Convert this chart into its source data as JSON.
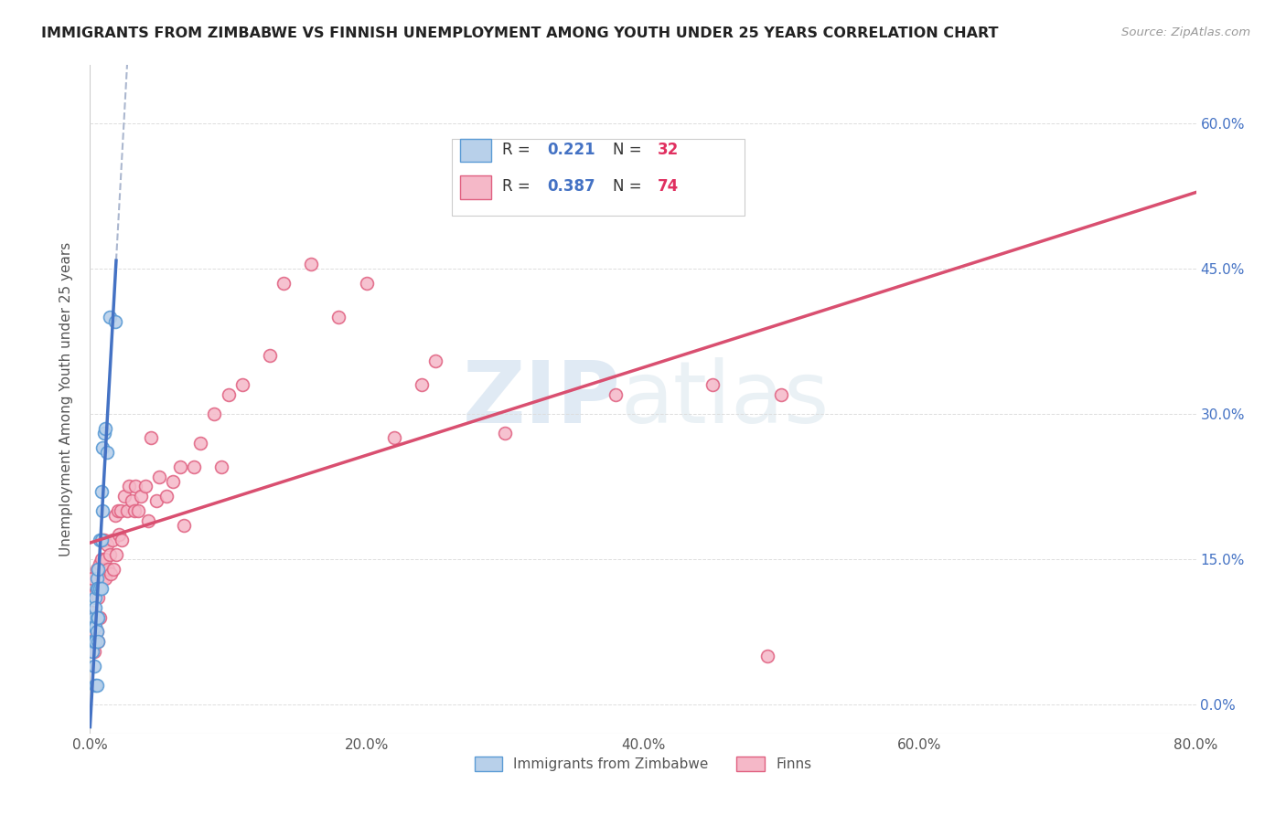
{
  "title": "IMMIGRANTS FROM ZIMBABWE VS FINNISH UNEMPLOYMENT AMONG YOUTH UNDER 25 YEARS CORRELATION CHART",
  "source": "Source: ZipAtlas.com",
  "ylabel": "Unemployment Among Youth under 25 years",
  "xlim": [
    0.0,
    0.8
  ],
  "ylim": [
    -0.03,
    0.66
  ],
  "xtick_vals": [
    0.0,
    0.2,
    0.4,
    0.6,
    0.8
  ],
  "ytick_vals": [
    0.0,
    0.15,
    0.3,
    0.45,
    0.6
  ],
  "ytick_labels_right": [
    "0.0%",
    "15.0%",
    "30.0%",
    "45.0%",
    "60.0%"
  ],
  "color_blue_fill": "#b8d0ea",
  "color_blue_edge": "#5b9bd5",
  "color_pink_fill": "#f5b8c8",
  "color_pink_edge": "#e06080",
  "color_blue_line": "#4472c4",
  "color_pink_line": "#d94f70",
  "color_dash_line": "#8899bb",
  "color_right_tick": "#4472c4",
  "watermark_color": "#c8daec",
  "legend_label1": "Immigrants from Zimbabwe",
  "legend_label2": "Finns",
  "blue_x": [
    0.002,
    0.002,
    0.003,
    0.003,
    0.003,
    0.003,
    0.004,
    0.004,
    0.004,
    0.004,
    0.004,
    0.005,
    0.005,
    0.005,
    0.005,
    0.005,
    0.006,
    0.006,
    0.006,
    0.006,
    0.007,
    0.007,
    0.008,
    0.008,
    0.008,
    0.009,
    0.009,
    0.01,
    0.011,
    0.012,
    0.014,
    0.018
  ],
  "blue_y": [
    0.065,
    0.055,
    0.09,
    0.08,
    0.065,
    0.04,
    0.11,
    0.1,
    0.08,
    0.065,
    0.02,
    0.13,
    0.12,
    0.09,
    0.075,
    0.02,
    0.14,
    0.12,
    0.09,
    0.065,
    0.17,
    0.12,
    0.22,
    0.17,
    0.12,
    0.265,
    0.2,
    0.28,
    0.285,
    0.26,
    0.4,
    0.395
  ],
  "pink_x": [
    0.001,
    0.002,
    0.002,
    0.003,
    0.003,
    0.003,
    0.004,
    0.004,
    0.005,
    0.005,
    0.005,
    0.006,
    0.006,
    0.006,
    0.006,
    0.007,
    0.007,
    0.007,
    0.008,
    0.008,
    0.009,
    0.009,
    0.01,
    0.01,
    0.011,
    0.011,
    0.012,
    0.013,
    0.014,
    0.015,
    0.016,
    0.017,
    0.018,
    0.019,
    0.02,
    0.021,
    0.022,
    0.023,
    0.025,
    0.027,
    0.028,
    0.03,
    0.032,
    0.033,
    0.035,
    0.037,
    0.04,
    0.042,
    0.044,
    0.048,
    0.05,
    0.055,
    0.06,
    0.065,
    0.068,
    0.075,
    0.08,
    0.09,
    0.095,
    0.1,
    0.11,
    0.13,
    0.14,
    0.16,
    0.18,
    0.2,
    0.22,
    0.24,
    0.25,
    0.3,
    0.38,
    0.45,
    0.49,
    0.5
  ],
  "pink_y": [
    0.095,
    0.085,
    0.13,
    0.09,
    0.075,
    0.055,
    0.115,
    0.08,
    0.14,
    0.12,
    0.075,
    0.13,
    0.11,
    0.09,
    0.065,
    0.145,
    0.12,
    0.09,
    0.15,
    0.13,
    0.17,
    0.13,
    0.17,
    0.14,
    0.15,
    0.13,
    0.165,
    0.14,
    0.155,
    0.135,
    0.17,
    0.14,
    0.195,
    0.155,
    0.2,
    0.175,
    0.2,
    0.17,
    0.215,
    0.2,
    0.225,
    0.21,
    0.2,
    0.225,
    0.2,
    0.215,
    0.225,
    0.19,
    0.275,
    0.21,
    0.235,
    0.215,
    0.23,
    0.245,
    0.185,
    0.245,
    0.27,
    0.3,
    0.245,
    0.32,
    0.33,
    0.36,
    0.435,
    0.455,
    0.4,
    0.435,
    0.275,
    0.33,
    0.355,
    0.28,
    0.32,
    0.33,
    0.05,
    0.32
  ]
}
